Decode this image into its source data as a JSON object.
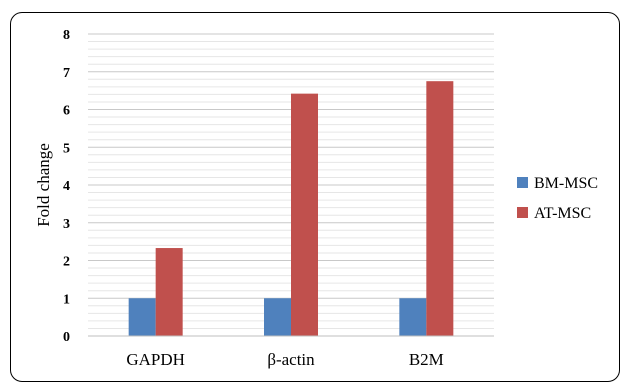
{
  "chart_data": {
    "type": "bar",
    "title": "",
    "xlabel": "",
    "ylabel": "Fold change",
    "categories": [
      "GAPDH",
      "β-actin",
      "B2M"
    ],
    "series": [
      {
        "name": "BM-MSC",
        "values": [
          1,
          1,
          1
        ],
        "color": "#4F81BD"
      },
      {
        "name": "AT-MSC",
        "values": [
          2.33,
          6.42,
          6.75
        ],
        "color": "#C0504D"
      }
    ],
    "ylim": [
      0,
      8
    ],
    "yticks": [
      "0",
      "1",
      "2",
      "3",
      "4",
      "5",
      "6",
      "7",
      "8"
    ],
    "grid": true,
    "legend": "right"
  }
}
